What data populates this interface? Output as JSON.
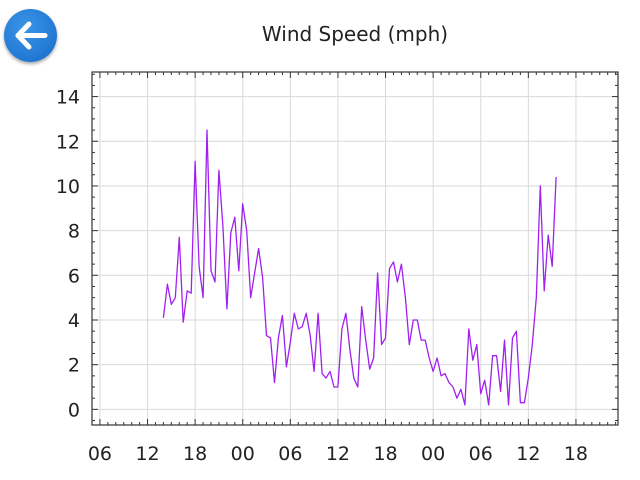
{
  "nav": {
    "back_icon": "arrow-left-icon",
    "accent": "#2a86dc"
  },
  "chart_data": {
    "type": "line",
    "title": "Wind Speed (mph)",
    "xlabel": "",
    "ylabel": "",
    "line_color": "#a020f0",
    "grid": true,
    "y_ticks": [
      0,
      2,
      4,
      6,
      8,
      10,
      12,
      14
    ],
    "ylim": [
      -0.7,
      15.1
    ],
    "x_ticks": [
      {
        "label": "06",
        "t": 0
      },
      {
        "label": "12",
        "t": 6
      },
      {
        "label": "18",
        "t": 12
      },
      {
        "label": "00",
        "t": 18
      },
      {
        "label": "06",
        "t": 24
      },
      {
        "label": "12",
        "t": 30
      },
      {
        "label": "18",
        "t": 36
      },
      {
        "label": "00",
        "t": 42
      },
      {
        "label": "06",
        "t": 48
      },
      {
        "label": "12",
        "t": 54
      },
      {
        "label": "18",
        "t": 60
      }
    ],
    "x_range_hours": [
      -1.0,
      65.3
    ],
    "series": [
      {
        "time_start_hour": 8,
        "interval_minutes": 30,
        "values": [
          4.1,
          5.6,
          4.7,
          5.0,
          7.7,
          3.9,
          5.3,
          5.2,
          11.1,
          6.4,
          5.0,
          12.5,
          6.2,
          5.7,
          10.7,
          8.2,
          4.5,
          7.9,
          8.6,
          6.2,
          9.2,
          8.0,
          5.0,
          6.1,
          7.2,
          5.9,
          3.3,
          3.2,
          1.2,
          3.2,
          4.2,
          1.9,
          3.0,
          4.3,
          3.6,
          3.7,
          4.3,
          3.3,
          1.7,
          4.3,
          1.6,
          1.4,
          1.7,
          1.0,
          1.0,
          3.6,
          4.3,
          2.7,
          1.4,
          1.0,
          4.6,
          3.1,
          1.8,
          2.3,
          6.1,
          2.9,
          3.2,
          6.3,
          6.6,
          5.7,
          6.5,
          5.0,
          2.9,
          4.0,
          4.0,
          3.1,
          3.1,
          2.3,
          1.7,
          2.3,
          1.5,
          1.6,
          1.2,
          1.0,
          0.5,
          0.9,
          0.2,
          3.6,
          2.2,
          2.9,
          0.7,
          1.3,
          0.2,
          2.4,
          2.4,
          0.8,
          3.1,
          0.2,
          3.2,
          3.5,
          0.3,
          0.3,
          1.4,
          2.9,
          5.0,
          10.0,
          5.3,
          7.8,
          6.4,
          10.4
        ]
      }
    ]
  }
}
